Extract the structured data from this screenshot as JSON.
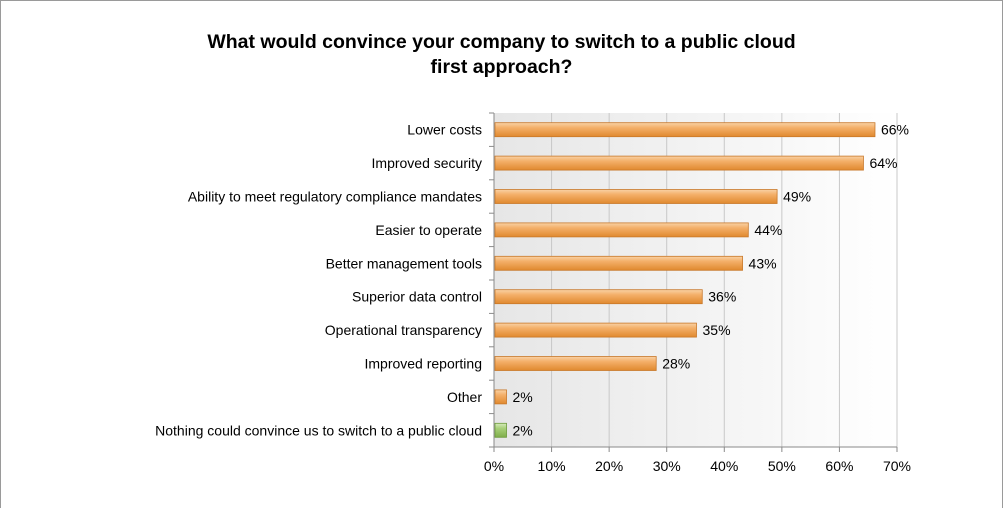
{
  "chart_data": {
    "type": "bar",
    "orientation": "horizontal",
    "title": "What would convince your company to switch to a public cloud first approach?",
    "title_lines": [
      "What would convince your company to switch to a public cloud",
      "first approach?"
    ],
    "categories": [
      "Lower costs",
      "Improved security",
      "Ability to meet regulatory compliance mandates",
      "Easier to operate",
      "Better management tools",
      "Superior data control",
      "Operational transparency",
      "Improved reporting",
      "Other",
      "Nothing could convince us to switch to a public cloud"
    ],
    "values": [
      66,
      64,
      49,
      44,
      43,
      36,
      35,
      28,
      2,
      2
    ],
    "value_labels": [
      "66%",
      "64%",
      "49%",
      "44%",
      "43%",
      "36%",
      "35%",
      "28%",
      "2%",
      "2%"
    ],
    "bar_colors": [
      "#f0a050",
      "#f0a050",
      "#f0a050",
      "#f0a050",
      "#f0a050",
      "#f0a050",
      "#f0a050",
      "#f0a050",
      "#f0a050",
      "#9ac46a"
    ],
    "xlim": [
      0,
      70
    ],
    "xticks": [
      0,
      10,
      20,
      30,
      40,
      50,
      60,
      70
    ],
    "xtick_labels": [
      "0%",
      "10%",
      "20%",
      "30%",
      "40%",
      "50%",
      "60%",
      "70%"
    ],
    "xlabel": "",
    "ylabel": "",
    "grid": true,
    "legend": "none"
  }
}
